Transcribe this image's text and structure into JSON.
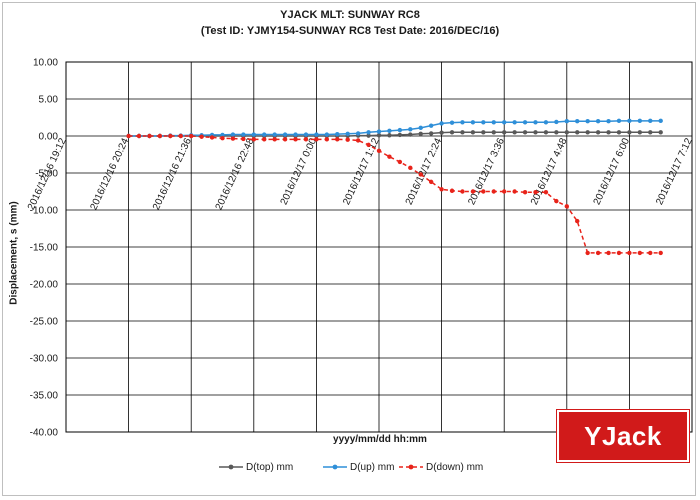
{
  "chart_data": {
    "type": "line",
    "title": "YJACK MLT: SUNWAY RC8",
    "subtitle": "(Test ID: YJMY154-SUNWAY RC8 Test Date: 2016/DEC/16)",
    "xlabel": "yyyy/mm/dd hh:mm",
    "ylabel": "Displacement, s (mm)",
    "x_tick_labels": [
      "2016/12/16 19:12",
      "2016/12/16 20:24",
      "2016/12/16 21:36",
      "2016/12/16 22:48",
      "2016/12/17 0:00",
      "2016/12/17 1:12",
      "2016/12/17 2:24",
      "2016/12/17 3:36",
      "2016/12/17 4:48",
      "2016/12/17 6:00",
      "2016/12/17 7:12"
    ],
    "y_tick_labels": [
      "10.00",
      "5.00",
      "0.00",
      "-5.00",
      "-10.00",
      "-15.00",
      "-20.00",
      "-25.00",
      "-30.00",
      "-35.00",
      "-40.00"
    ],
    "xlim": [
      "2016/12/16 19:12",
      "2016/12/17 7:12"
    ],
    "ylim": [
      -40,
      10
    ],
    "grid": true,
    "legend_position": "bottom",
    "series": [
      {
        "name": "D(top) mm",
        "color": "#595959",
        "line": "solid",
        "x": [
          "2016/12/16 20:24",
          "2016/12/16 20:36",
          "2016/12/16 20:48",
          "2016/12/16 21:00",
          "2016/12/16 21:12",
          "2016/12/16 21:24",
          "2016/12/16 21:36",
          "2016/12/16 21:48",
          "2016/12/16 22:00",
          "2016/12/16 22:12",
          "2016/12/16 22:24",
          "2016/12/16 22:36",
          "2016/12/16 22:48",
          "2016/12/16 23:00",
          "2016/12/16 23:12",
          "2016/12/16 23:24",
          "2016/12/16 23:36",
          "2016/12/16 23:48",
          "2016/12/17 0:00",
          "2016/12/17 0:12",
          "2016/12/17 0:24",
          "2016/12/17 0:36",
          "2016/12/17 0:48",
          "2016/12/17 1:00",
          "2016/12/17 1:12",
          "2016/12/17 1:24",
          "2016/12/17 1:36",
          "2016/12/17 1:48",
          "2016/12/17 2:00",
          "2016/12/17 2:12",
          "2016/12/17 2:24",
          "2016/12/17 2:36",
          "2016/12/17 2:48",
          "2016/12/17 3:00",
          "2016/12/17 3:12",
          "2016/12/17 3:24",
          "2016/12/17 3:36",
          "2016/12/17 3:48",
          "2016/12/17 4:00",
          "2016/12/17 4:12",
          "2016/12/17 4:24",
          "2016/12/17 4:36",
          "2016/12/17 4:48",
          "2016/12/17 5:00",
          "2016/12/17 5:12",
          "2016/12/17 5:24",
          "2016/12/17 5:36",
          "2016/12/17 5:48",
          "2016/12/17 6:00",
          "2016/12/17 6:12",
          "2016/12/17 6:24",
          "2016/12/17 6:36"
        ],
        "y": [
          0.0,
          0.0,
          0.0,
          0.0,
          0.0,
          0.0,
          0.0,
          0.0,
          0.0,
          0.0,
          0.0,
          0.0,
          0.0,
          0.0,
          0.0,
          0.0,
          0.0,
          0.0,
          0.0,
          0.0,
          0.0,
          0.0,
          0.05,
          0.05,
          0.1,
          0.1,
          0.15,
          0.2,
          0.3,
          0.35,
          0.45,
          0.5,
          0.5,
          0.5,
          0.5,
          0.5,
          0.5,
          0.5,
          0.5,
          0.5,
          0.5,
          0.5,
          0.5,
          0.5,
          0.5,
          0.5,
          0.5,
          0.5,
          0.5,
          0.5,
          0.5,
          0.5
        ]
      },
      {
        "name": "D(up) mm",
        "color": "#2f8fd8",
        "line": "solid",
        "x": [
          "2016/12/16 20:24",
          "2016/12/16 20:36",
          "2016/12/16 20:48",
          "2016/12/16 21:00",
          "2016/12/16 21:12",
          "2016/12/16 21:24",
          "2016/12/16 21:36",
          "2016/12/16 21:48",
          "2016/12/16 22:00",
          "2016/12/16 22:12",
          "2016/12/16 22:24",
          "2016/12/16 22:36",
          "2016/12/16 22:48",
          "2016/12/16 23:00",
          "2016/12/16 23:12",
          "2016/12/16 23:24",
          "2016/12/16 23:36",
          "2016/12/16 23:48",
          "2016/12/17 0:00",
          "2016/12/17 0:12",
          "2016/12/17 0:24",
          "2016/12/17 0:36",
          "2016/12/17 0:48",
          "2016/12/17 1:00",
          "2016/12/17 1:12",
          "2016/12/17 1:24",
          "2016/12/17 1:36",
          "2016/12/17 1:48",
          "2016/12/17 2:00",
          "2016/12/17 2:12",
          "2016/12/17 2:24",
          "2016/12/17 2:36",
          "2016/12/17 2:48",
          "2016/12/17 3:00",
          "2016/12/17 3:12",
          "2016/12/17 3:24",
          "2016/12/17 3:36",
          "2016/12/17 3:48",
          "2016/12/17 4:00",
          "2016/12/17 4:12",
          "2016/12/17 4:24",
          "2016/12/17 4:36",
          "2016/12/17 4:48",
          "2016/12/17 5:00",
          "2016/12/17 5:12",
          "2016/12/17 5:24",
          "2016/12/17 5:36",
          "2016/12/17 5:48",
          "2016/12/17 6:00",
          "2016/12/17 6:12",
          "2016/12/17 6:24",
          "2016/12/17 6:36"
        ],
        "y": [
          0.0,
          0.0,
          0.0,
          0.0,
          0.05,
          0.05,
          0.1,
          0.1,
          0.15,
          0.15,
          0.2,
          0.2,
          0.2,
          0.2,
          0.2,
          0.2,
          0.2,
          0.2,
          0.2,
          0.2,
          0.25,
          0.3,
          0.35,
          0.5,
          0.6,
          0.7,
          0.8,
          0.9,
          1.1,
          1.4,
          1.7,
          1.8,
          1.85,
          1.85,
          1.85,
          1.85,
          1.85,
          1.85,
          1.85,
          1.85,
          1.85,
          1.9,
          2.0,
          2.0,
          2.0,
          2.0,
          2.0,
          2.05,
          2.05,
          2.05,
          2.05,
          2.05
        ]
      },
      {
        "name": "D(down) mm",
        "color": "#e8231a",
        "line": "dashed",
        "x": [
          "2016/12/16 20:24",
          "2016/12/16 20:36",
          "2016/12/16 20:48",
          "2016/12/16 21:00",
          "2016/12/16 21:12",
          "2016/12/16 21:24",
          "2016/12/16 21:36",
          "2016/12/16 21:48",
          "2016/12/16 22:00",
          "2016/12/16 22:12",
          "2016/12/16 22:24",
          "2016/12/16 22:36",
          "2016/12/16 22:48",
          "2016/12/16 23:00",
          "2016/12/16 23:12",
          "2016/12/16 23:24",
          "2016/12/16 23:36",
          "2016/12/16 23:48",
          "2016/12/17 0:00",
          "2016/12/17 0:12",
          "2016/12/17 0:24",
          "2016/12/17 0:36",
          "2016/12/17 0:48",
          "2016/12/17 1:00",
          "2016/12/17 1:12",
          "2016/12/17 1:24",
          "2016/12/17 1:36",
          "2016/12/17 1:48",
          "2016/12/17 2:00",
          "2016/12/17 2:12",
          "2016/12/17 2:24",
          "2016/12/17 2:36",
          "2016/12/17 2:48",
          "2016/12/17 3:00",
          "2016/12/17 3:12",
          "2016/12/17 3:24",
          "2016/12/17 3:36",
          "2016/12/17 3:48",
          "2016/12/17 4:00",
          "2016/12/17 4:12",
          "2016/12/17 4:24",
          "2016/12/17 4:36",
          "2016/12/17 4:48",
          "2016/12/17 5:00",
          "2016/12/17 5:12",
          "2016/12/17 5:24",
          "2016/12/17 5:36",
          "2016/12/17 5:48",
          "2016/12/17 6:00",
          "2016/12/17 6:12",
          "2016/12/17 6:24",
          "2016/12/17 6:36"
        ],
        "y": [
          0.0,
          0.0,
          0.0,
          0.0,
          0.0,
          0.0,
          0.0,
          -0.1,
          -0.2,
          -0.3,
          -0.35,
          -0.4,
          -0.45,
          -0.45,
          -0.45,
          -0.45,
          -0.45,
          -0.45,
          -0.45,
          -0.45,
          -0.45,
          -0.5,
          -0.6,
          -1.2,
          -2.0,
          -2.8,
          -3.5,
          -4.3,
          -5.2,
          -6.2,
          -7.2,
          -7.4,
          -7.5,
          -7.5,
          -7.5,
          -7.5,
          -7.5,
          -7.5,
          -7.6,
          -7.6,
          -7.6,
          -8.8,
          -9.5,
          -11.5,
          -15.8,
          -15.8,
          -15.8,
          -15.8,
          -15.8,
          -15.8,
          -15.8,
          -15.8
        ]
      }
    ]
  },
  "logo": {
    "text": "YJack",
    "color": "#d11a1a"
  }
}
